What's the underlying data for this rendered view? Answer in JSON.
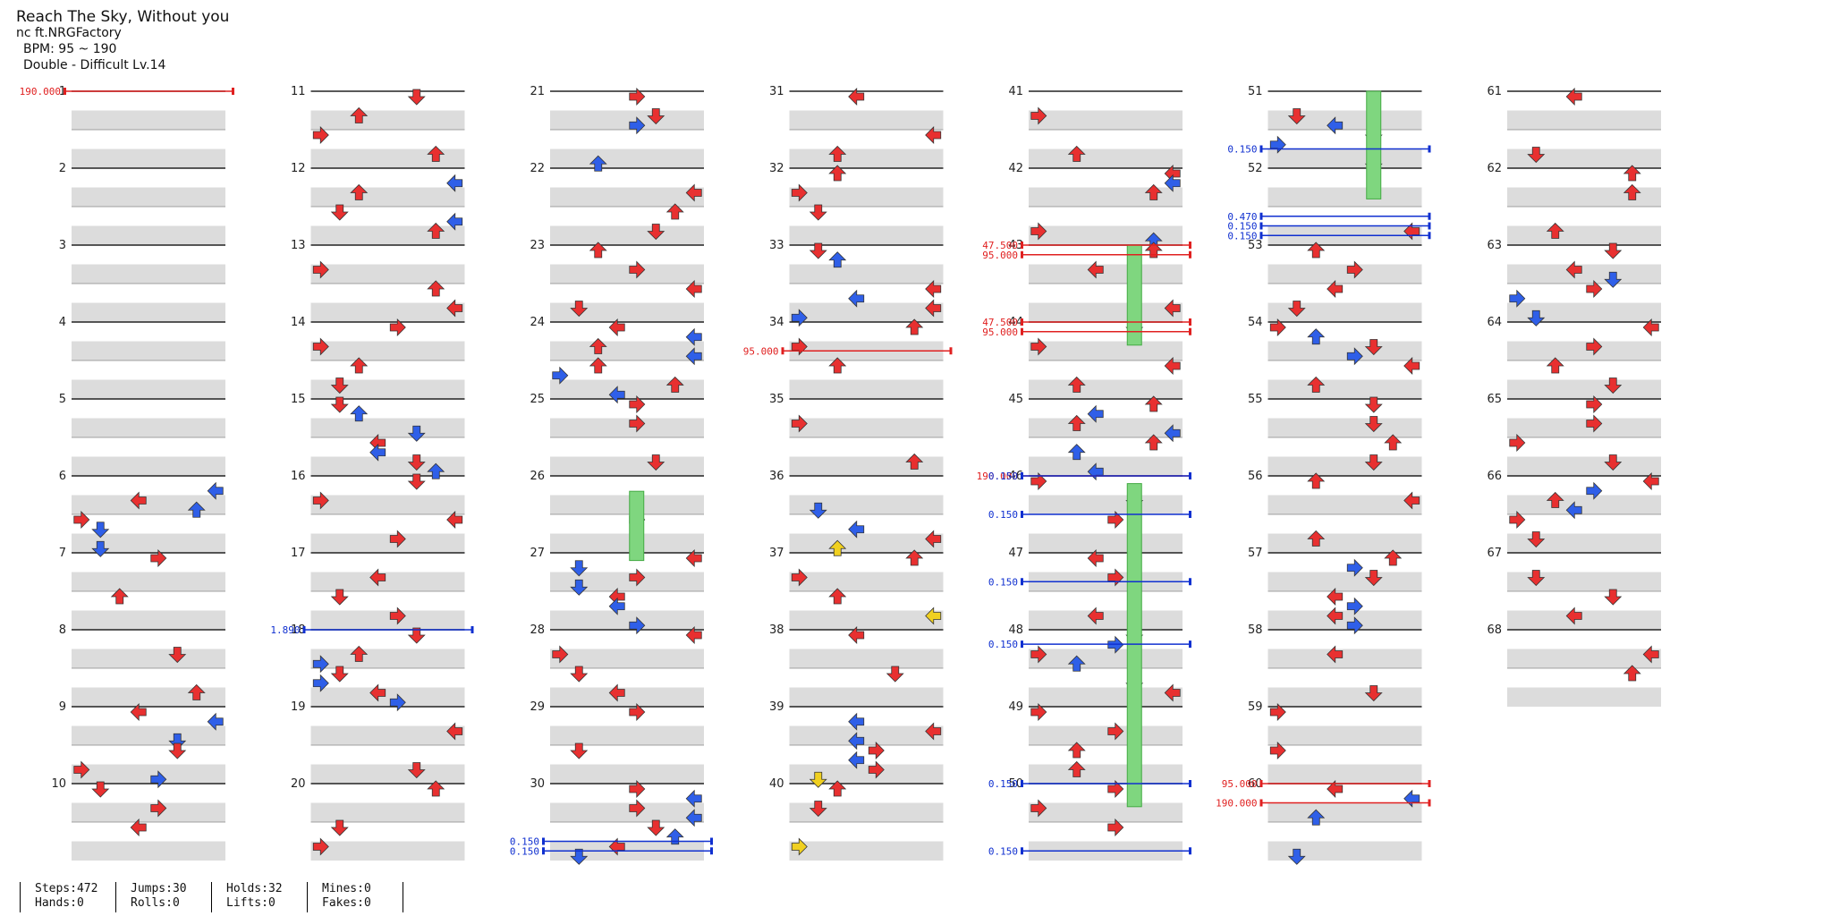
{
  "header": {
    "title": "Reach The Sky, Without you",
    "artist": "nc ft.NRGFactory",
    "bpm": "BPM: 95 ~ 190",
    "difficulty": "Double - Difficult Lv.14"
  },
  "stats": {
    "steps": "Steps:472",
    "hands": "Hands:0",
    "jumps": "Jumps:30",
    "rolls": "Rolls:0",
    "holds": "Holds:32",
    "lifts": "Lifts:0",
    "mines": "Mines:0",
    "fakes": "Fakes:0"
  },
  "chart": {
    "measures": 68,
    "measures_per_column": 10,
    "colors": {
      "quarter": "#e83030",
      "eighth": "#2f5fe8",
      "sixteenth": "#f0d020",
      "twelfth": "#e88020",
      "hold": "#7fd67f",
      "bpm": "#e02020",
      "speed": "#1030d0",
      "stripe": "#dcdcdc"
    },
    "bpm_changes": [
      {
        "measure": 1,
        "beat": 0,
        "label": "190.000"
      },
      {
        "measure": 34,
        "beat": 1.5,
        "label": "95.000"
      },
      {
        "measure": 43,
        "beat": 0,
        "label": "47.500"
      },
      {
        "measure": 43,
        "beat": 0.5,
        "label": "95.000"
      },
      {
        "measure": 44,
        "beat": 0,
        "label": "47.500"
      },
      {
        "measure": 44,
        "beat": 0.5,
        "label": "95.000"
      },
      {
        "measure": 46,
        "beat": 0,
        "label": "190.000"
      },
      {
        "measure": 60,
        "beat": 0,
        "label": "95.000"
      },
      {
        "measure": 60,
        "beat": 1,
        "label": "190.000"
      }
    ],
    "speed_changes": [
      {
        "measure": 18,
        "beat": 0,
        "label": "1.890"
      },
      {
        "measure": 30,
        "beat": 3,
        "label": "0.150"
      },
      {
        "measure": 30,
        "beat": 3.5,
        "label": "0.150"
      },
      {
        "measure": 46,
        "beat": 0,
        "label": "0.150"
      },
      {
        "measure": 46,
        "beat": 2,
        "label": "0.150"
      },
      {
        "measure": 47,
        "beat": 1.5,
        "label": "0.150"
      },
      {
        "measure": 48,
        "beat": 0.75,
        "label": "0.150"
      },
      {
        "measure": 50,
        "beat": 0,
        "label": "0.150"
      },
      {
        "measure": 50,
        "beat": 3.5,
        "label": "0.150"
      },
      {
        "measure": 51,
        "beat": 3,
        "label": "0.150"
      },
      {
        "measure": 52,
        "beat": 2.5,
        "label": "0.470"
      },
      {
        "measure": 52,
        "beat": 3,
        "label": "0.150"
      },
      {
        "measure": 52,
        "beat": 3.5,
        "label": "0.150"
      }
    ]
  }
}
